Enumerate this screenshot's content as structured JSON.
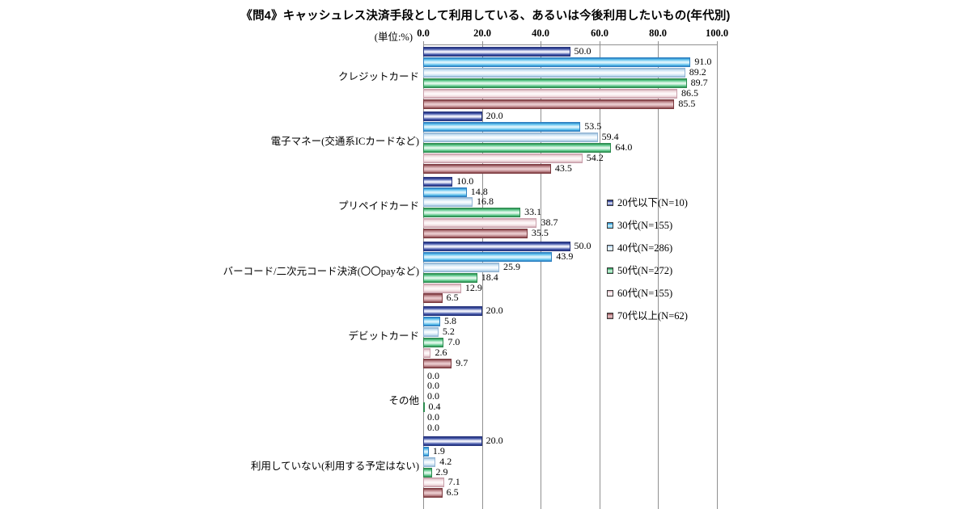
{
  "chart_data": {
    "type": "bar",
    "orientation": "horizontal",
    "title": "《問4》キャッシュレス決済手段として利用している、あるいは今後利用したいもの(年代別)",
    "unit": "(単位:%)",
    "xlim": [
      0,
      100
    ],
    "x_ticks": [
      "0.0",
      "20.0",
      "40.0",
      "60.0",
      "80.0",
      "100.0"
    ],
    "grid": true,
    "grid_color": "#909090",
    "legend_position": "middle-right-inside",
    "value_label_format": "one-decimal",
    "categories": [
      "クレジットカード",
      "電子マネー(交通系ICカードなど)",
      "プリペイドカード",
      "バーコード/二次元コード決済(〇〇payなど)",
      "デビットカード",
      "その他",
      "利用していない(利用する予定はない)"
    ],
    "series": [
      {
        "name": "20代以下(N=10)",
        "values": [
          50.0,
          20.0,
          10.0,
          50.0,
          20.0,
          0.0,
          20.0
        ],
        "color": {
          "edge": "#27357e",
          "mid": "#4053a8",
          "light": "#eceef9"
        }
      },
      {
        "name": "30代(N=155)",
        "values": [
          91.0,
          53.5,
          14.8,
          43.9,
          5.8,
          0.0,
          1.9
        ],
        "color": {
          "edge": "#2d7fc0",
          "mid": "#56beec",
          "light": "#d9f2fc"
        }
      },
      {
        "name": "40代(N=286)",
        "values": [
          89.2,
          59.4,
          16.8,
          25.9,
          5.2,
          0.0,
          4.2
        ],
        "color": {
          "edge": "#93b5d4",
          "mid": "#c6e0f2",
          "light": "#f7fbfe"
        }
      },
      {
        "name": "50代(N=272)",
        "values": [
          89.7,
          64.0,
          33.1,
          18.4,
          7.0,
          0.4,
          2.9
        ],
        "color": {
          "edge": "#2c8a4e",
          "mid": "#57c687",
          "light": "#def6e8"
        }
      },
      {
        "name": "60代(N=155)",
        "values": [
          86.5,
          54.2,
          38.7,
          12.9,
          2.6,
          0.0,
          7.1
        ],
        "color": {
          "edge": "#c9a0ab",
          "mid": "#eed7db",
          "light": "#fdf7f8"
        }
      },
      {
        "name": "70代以上(N=62)",
        "values": [
          85.5,
          43.5,
          35.5,
          6.5,
          9.7,
          0.0,
          6.5
        ],
        "color": {
          "edge": "#7c3a3f",
          "mid": "#b57b80",
          "light": "#e8c8cb"
        }
      }
    ]
  }
}
